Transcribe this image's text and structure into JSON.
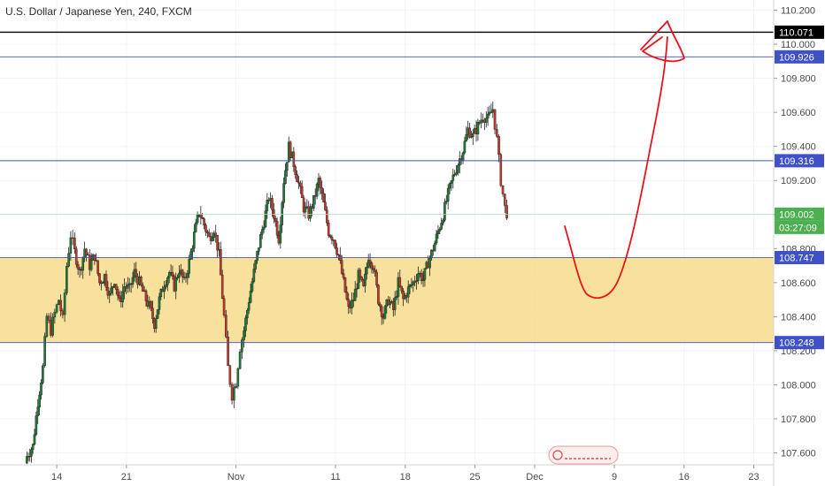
{
  "chart_data": {
    "type": "candlestick",
    "title": "U.S. Dollar / Japanese Yen, 240, FXCM",
    "y_ticks": [
      107.6,
      107.8,
      108.0,
      108.2,
      108.4,
      108.6,
      108.8,
      109.0,
      109.2,
      109.4,
      109.6,
      109.8,
      110.0,
      110.2
    ],
    "y_tick_labels": [
      "107.600",
      "107.800",
      "108.000",
      "108.200",
      "108.400",
      "108.600",
      "108.800",
      "109.000",
      "109.200",
      "109.400",
      "109.600",
      "109.800",
      "110.000",
      "110.200"
    ],
    "ylim": [
      107.53,
      110.26
    ],
    "x_ticks": [
      {
        "label": "14",
        "day": 14
      },
      {
        "label": "21",
        "day": 21
      },
      {
        "label": "Nov",
        "day": 32
      },
      {
        "label": "11",
        "day": 42
      },
      {
        "label": "18",
        "day": 49
      },
      {
        "label": "25",
        "day": 56
      },
      {
        "label": "Dec",
        "day": 62
      },
      {
        "label": "9",
        "day": 70
      },
      {
        "label": "16",
        "day": 77
      },
      {
        "label": "23",
        "day": 84
      }
    ],
    "xlim": [
      8.3,
      86.0
    ],
    "horizontal_levels": [
      {
        "price": 110.071,
        "label": "110.071",
        "color": "#000000"
      },
      {
        "price": 109.926,
        "label": "109.926",
        "color": "#3f51c8"
      },
      {
        "price": 109.316,
        "label": "109.316",
        "color": "#3f51c8"
      },
      {
        "price": 108.747,
        "label": "108.747",
        "color": "#3f51c8"
      },
      {
        "price": 108.248,
        "label": "108.248",
        "color": "#3f51c8"
      }
    ],
    "current_price": {
      "price": 109.002,
      "label": "109.002",
      "countdown": "03:27:09",
      "color": "#4caf50"
    },
    "support_zone": {
      "from": 108.248,
      "to": 108.747,
      "color": "#f7dc8c"
    },
    "close_series": [
      [
        11.0,
        107.58
      ],
      [
        11.6,
        107.64
      ],
      [
        12.1,
        107.9
      ],
      [
        12.6,
        108.1
      ],
      [
        13.0,
        108.4
      ],
      [
        13.4,
        108.32
      ],
      [
        13.8,
        108.42
      ],
      [
        14.2,
        108.5
      ],
      [
        14.6,
        108.38
      ],
      [
        15.0,
        108.7
      ],
      [
        15.4,
        108.88
      ],
      [
        15.8,
        108.78
      ],
      [
        16.3,
        108.66
      ],
      [
        16.8,
        108.8
      ],
      [
        17.3,
        108.7
      ],
      [
        17.8,
        108.76
      ],
      [
        18.3,
        108.6
      ],
      [
        18.8,
        108.64
      ],
      [
        19.3,
        108.52
      ],
      [
        19.8,
        108.62
      ],
      [
        20.3,
        108.48
      ],
      [
        20.8,
        108.58
      ],
      [
        21.3,
        108.56
      ],
      [
        21.8,
        108.66
      ],
      [
        22.3,
        108.6
      ],
      [
        22.8,
        108.52
      ],
      [
        23.3,
        108.46
      ],
      [
        23.8,
        108.36
      ],
      [
        24.3,
        108.5
      ],
      [
        24.8,
        108.6
      ],
      [
        25.3,
        108.66
      ],
      [
        25.8,
        108.58
      ],
      [
        26.3,
        108.68
      ],
      [
        26.8,
        108.6
      ],
      [
        27.3,
        108.72
      ],
      [
        27.8,
        108.88
      ],
      [
        28.3,
        109.02
      ],
      [
        28.8,
        108.94
      ],
      [
        29.3,
        108.86
      ],
      [
        29.8,
        108.92
      ],
      [
        30.3,
        108.76
      ],
      [
        30.8,
        108.4
      ],
      [
        31.2,
        108.1
      ],
      [
        31.6,
        107.94
      ],
      [
        32.0,
        108.02
      ],
      [
        32.4,
        108.22
      ],
      [
        32.8,
        108.32
      ],
      [
        33.3,
        108.5
      ],
      [
        33.8,
        108.66
      ],
      [
        34.3,
        108.82
      ],
      [
        34.8,
        108.96
      ],
      [
        35.3,
        109.1
      ],
      [
        35.8,
        109.0
      ],
      [
        36.3,
        108.86
      ],
      [
        36.8,
        109.2
      ],
      [
        37.3,
        109.4
      ],
      [
        37.8,
        109.3
      ],
      [
        38.3,
        109.18
      ],
      [
        38.8,
        109.04
      ],
      [
        39.3,
        109.0
      ],
      [
        39.8,
        109.08
      ],
      [
        40.3,
        109.2
      ],
      [
        40.8,
        109.06
      ],
      [
        41.3,
        108.9
      ],
      [
        41.8,
        108.86
      ],
      [
        42.3,
        108.76
      ],
      [
        42.8,
        108.6
      ],
      [
        43.3,
        108.44
      ],
      [
        43.8,
        108.5
      ],
      [
        44.3,
        108.64
      ],
      [
        44.8,
        108.56
      ],
      [
        45.3,
        108.76
      ],
      [
        45.8,
        108.7
      ],
      [
        46.3,
        108.5
      ],
      [
        46.8,
        108.4
      ],
      [
        47.3,
        108.5
      ],
      [
        47.8,
        108.44
      ],
      [
        48.3,
        108.6
      ],
      [
        48.8,
        108.5
      ],
      [
        49.3,
        108.56
      ],
      [
        49.8,
        108.6
      ],
      [
        50.3,
        108.66
      ],
      [
        50.8,
        108.62
      ],
      [
        51.3,
        108.72
      ],
      [
        51.8,
        108.8
      ],
      [
        52.3,
        108.9
      ],
      [
        52.8,
        109.0
      ],
      [
        53.3,
        109.12
      ],
      [
        53.8,
        109.22
      ],
      [
        54.3,
        109.3
      ],
      [
        54.8,
        109.38
      ],
      [
        55.3,
        109.5
      ],
      [
        55.8,
        109.46
      ],
      [
        56.3,
        109.52
      ],
      [
        56.8,
        109.58
      ],
      [
        57.3,
        109.56
      ],
      [
        57.8,
        109.62
      ],
      [
        58.2,
        109.44
      ],
      [
        58.6,
        109.2
      ],
      [
        59.0,
        109.04
      ],
      [
        59.4,
        108.98
      ]
    ]
  }
}
